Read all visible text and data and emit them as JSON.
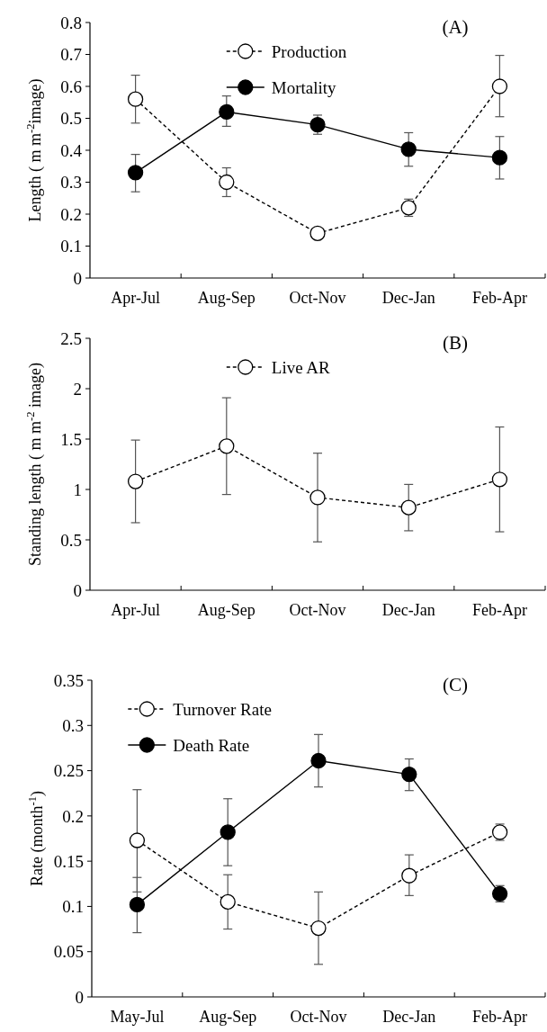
{
  "chart_data": [
    {
      "type": "line",
      "ylabel": "Length ( m m$^{-2}$image)",
      "annotations": [
        "(A)"
      ],
      "categories": [
        "Apr-Jul",
        "Aug-Sep",
        "Oct-Nov",
        "Dec-Jan",
        "Feb-Apr"
      ],
      "ylim": [
        0,
        0.8
      ],
      "yticks": [
        0,
        0.1,
        0.2,
        0.3,
        0.4,
        0.5,
        0.6,
        0.7,
        0.8
      ],
      "grid": false,
      "legend": "top",
      "marker": "circle",
      "series": [
        {
          "name": "Production",
          "color": "#ffffff",
          "line_style": "dashed",
          "values": [
            0.56,
            0.3,
            0.14,
            0.22,
            0.6
          ],
          "errors": [
            [
              0.485,
              0.635
            ],
            [
              0.255,
              0.345
            ],
            null,
            [
              0.193,
              0.247
            ],
            [
              0.505,
              0.697
            ]
          ]
        },
        {
          "name": "Mortality",
          "color": "#000000",
          "line_style": "solid",
          "values": [
            0.33,
            0.52,
            0.48,
            0.403,
            0.377
          ],
          "errors": [
            [
              0.27,
              0.387
            ],
            [
              0.475,
              0.57
            ],
            [
              0.45,
              0.51
            ],
            [
              0.35,
              0.455
            ],
            [
              0.31,
              0.443
            ]
          ]
        }
      ]
    },
    {
      "type": "line",
      "ylabel": "Standing length ( m m$^{-2}$ image)",
      "annotations": [
        "(B)"
      ],
      "categories": [
        "Apr-Jul",
        "Aug-Sep",
        "Oct-Nov",
        "Dec-Jan",
        "Feb-Apr"
      ],
      "ylim": [
        0,
        2.5
      ],
      "yticks": [
        0,
        0.5,
        1,
        1.5,
        2,
        2.5
      ],
      "grid": false,
      "legend": "top",
      "marker": "circle",
      "series": [
        {
          "name": "Live AR",
          "color": "#ffffff",
          "line_style": "dashed",
          "values": [
            1.08,
            1.43,
            0.92,
            0.82,
            1.1
          ],
          "errors": [
            [
              0.67,
              1.49
            ],
            [
              0.95,
              1.91
            ],
            [
              0.48,
              1.36
            ],
            [
              0.59,
              1.05
            ],
            [
              0.58,
              1.62
            ]
          ]
        }
      ]
    },
    {
      "type": "line",
      "ylabel": "Rate (month$^{-1}$)",
      "annotations": [
        "(C)"
      ],
      "categories": [
        "May-Jul",
        "Aug-Sep",
        "Oct-Nov",
        "Dec-Jan",
        "Feb-Apr"
      ],
      "ylim": [
        0,
        0.35
      ],
      "yticks": [
        0,
        0.05,
        0.1,
        0.15,
        0.2,
        0.25,
        0.3,
        0.35
      ],
      "grid": false,
      "legend": "top left",
      "marker": "circle",
      "series": [
        {
          "name": "Turnover Rate",
          "color": "#ffffff",
          "line_style": "dashed",
          "values": [
            0.173,
            0.105,
            0.076,
            0.134,
            0.182
          ],
          "errors": [
            [
              0.116,
              0.229
            ],
            [
              0.075,
              0.135
            ],
            [
              0.036,
              0.116
            ],
            [
              0.112,
              0.157
            ],
            [
              0.173,
              0.191
            ]
          ]
        },
        {
          "name": "Death Rate",
          "color": "#000000",
          "line_style": "solid",
          "values": [
            0.102,
            0.182,
            0.261,
            0.246,
            0.114
          ],
          "errors": [
            [
              0.071,
              0.132
            ],
            [
              0.145,
              0.219
            ],
            [
              0.232,
              0.29
            ],
            [
              0.228,
              0.263
            ],
            [
              0.105,
              0.123
            ]
          ]
        }
      ]
    }
  ]
}
